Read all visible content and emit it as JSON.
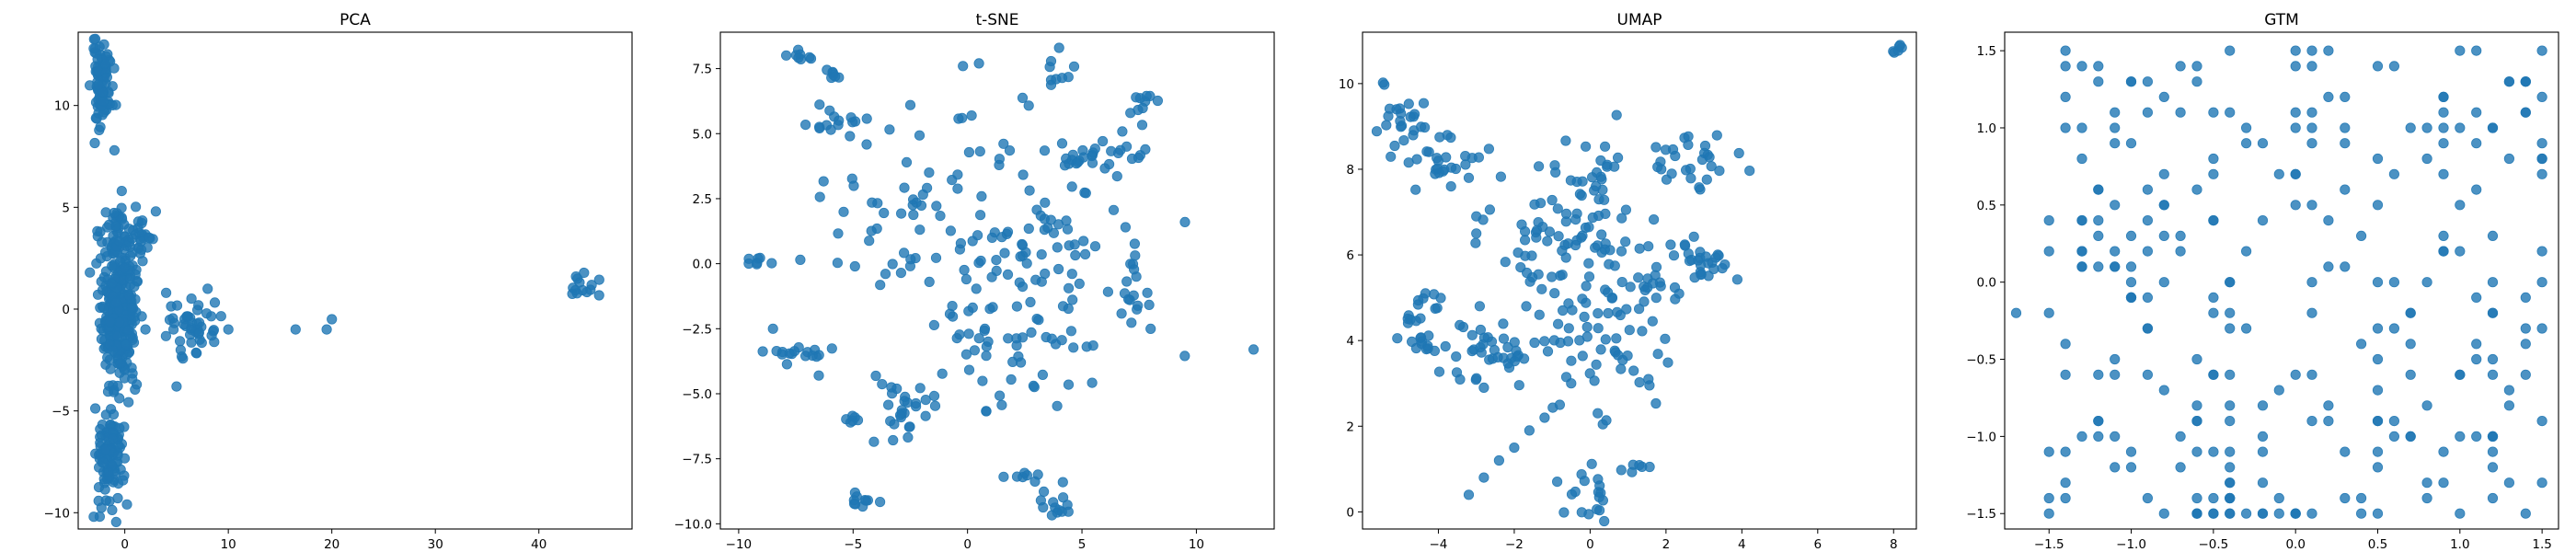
{
  "figure": {
    "background": "#ffffff",
    "marker_color": "#1f77b4",
    "marker_alpha": 0.8
  },
  "chart_data": [
    {
      "type": "scatter",
      "title": "PCA",
      "xlabel": "",
      "ylabel": "",
      "xlim": [
        -4.5,
        49
      ],
      "ylim": [
        -10.8,
        13.6
      ],
      "xticks": [
        0,
        10,
        20,
        30,
        40
      ],
      "yticks": [
        -10,
        -5,
        0,
        5,
        10
      ],
      "grid": false,
      "seed": 11,
      "clusters": [
        {
          "cx": -2.2,
          "cy": 11.0,
          "sx": 0.5,
          "sy": 1.0,
          "n": 80
        },
        {
          "cx": -0.6,
          "cy": -0.5,
          "sx": 0.8,
          "sy": 1.6,
          "n": 260
        },
        {
          "cx": -0.8,
          "cy": 3.2,
          "sx": 0.9,
          "sy": 1.0,
          "n": 70
        },
        {
          "cx": -1.4,
          "cy": -6.8,
          "sx": 0.7,
          "sy": 1.4,
          "n": 110
        },
        {
          "cx": 1.8,
          "cy": 3.5,
          "sx": 0.8,
          "sy": 0.6,
          "n": 18
        },
        {
          "cx": 6.5,
          "cy": -0.8,
          "sx": 1.4,
          "sy": 0.7,
          "n": 45
        },
        {
          "cx": 44.0,
          "cy": 1.2,
          "sx": 1.1,
          "sy": 0.5,
          "n": 14
        }
      ],
      "points": [
        {
          "x": -1.0,
          "y": 7.8
        },
        {
          "x": -3.0,
          "y": -10.2
        },
        {
          "x": 16.5,
          "y": -1.0
        },
        {
          "x": 19.5,
          "y": -1.0
        },
        {
          "x": 20.0,
          "y": -0.5
        },
        {
          "x": 10.0,
          "y": -1.0
        },
        {
          "x": 8.0,
          "y": 1.0
        },
        {
          "x": 3.0,
          "y": 4.8
        },
        {
          "x": -0.3,
          "y": 5.8
        },
        {
          "x": 5.0,
          "y": -3.8
        },
        {
          "x": 2.0,
          "y": -1.0
        },
        {
          "x": 4.0,
          "y": 0.8
        },
        {
          "x": -3.0,
          "y": 12.8
        },
        {
          "x": -2.0,
          "y": 13.0
        },
        {
          "x": 0.5,
          "y": 1.5
        }
      ]
    },
    {
      "type": "scatter",
      "title": "t-SNE",
      "xlabel": "",
      "ylabel": "",
      "xlim": [
        -10.8,
        13.4
      ],
      "ylim": [
        -10.2,
        8.9
      ],
      "xticks": [
        -10,
        -5,
        0,
        5,
        10
      ],
      "yticks": [
        -10.0,
        -7.5,
        -5.0,
        -2.5,
        0.0,
        2.5,
        5.0,
        7.5
      ],
      "ytick_labels": [
        "−10.0",
        "−7.5",
        "−5.0",
        "−2.5",
        "0.0",
        "2.5",
        "5.0",
        "7.5"
      ],
      "grid": false,
      "seed": 23,
      "clusters": [
        {
          "cx": -7.5,
          "cy": 8.0,
          "sx": 0.3,
          "sy": 0.2,
          "n": 8
        },
        {
          "cx": -6.0,
          "cy": 7.3,
          "sx": 0.3,
          "sy": 0.1,
          "n": 7
        },
        {
          "cx": -5.8,
          "cy": 5.3,
          "sx": 0.8,
          "sy": 0.4,
          "n": 16
        },
        {
          "cx": -9.2,
          "cy": 0.1,
          "sx": 0.3,
          "sy": 0.1,
          "n": 7
        },
        {
          "cx": -7.5,
          "cy": -3.5,
          "sx": 1.0,
          "sy": 0.2,
          "n": 16
        },
        {
          "cx": -2.8,
          "cy": -5.5,
          "sx": 0.5,
          "sy": 0.6,
          "n": 24
        },
        {
          "cx": -5.2,
          "cy": -6.0,
          "sx": 0.3,
          "sy": 0.1,
          "n": 6
        },
        {
          "cx": -4.3,
          "cy": -9.0,
          "sx": 0.5,
          "sy": 0.2,
          "n": 10
        },
        {
          "cx": 4.0,
          "cy": -9.3,
          "sx": 0.5,
          "sy": 0.3,
          "n": 12
        },
        {
          "cx": 2.5,
          "cy": -8.3,
          "sx": 0.8,
          "sy": 0.1,
          "n": 8
        },
        {
          "cx": 5.5,
          "cy": 4.1,
          "sx": 1.0,
          "sy": 0.3,
          "n": 28
        },
        {
          "cx": 7.8,
          "cy": 6.1,
          "sx": 0.3,
          "sy": 0.3,
          "n": 10
        },
        {
          "cx": 7.0,
          "cy": -1.2,
          "sx": 0.5,
          "sy": 0.7,
          "n": 16
        },
        {
          "cx": 2.0,
          "cy": 0.5,
          "sx": 2.2,
          "sy": 2.5,
          "n": 110
        },
        {
          "cx": -3.0,
          "cy": 1.0,
          "sx": 1.5,
          "sy": 2.0,
          "n": 40
        },
        {
          "cx": 1.5,
          "cy": -4.0,
          "sx": 1.4,
          "sy": 1.2,
          "n": 35
        },
        {
          "cx": 3.8,
          "cy": 7.3,
          "sx": 0.3,
          "sy": 0.4,
          "n": 8
        }
      ],
      "points": [
        {
          "x": 12.5,
          "y": -3.3
        },
        {
          "x": 9.5,
          "y": 1.6
        },
        {
          "x": -2.5,
          "y": 6.1
        },
        {
          "x": -0.2,
          "y": 7.6
        },
        {
          "x": 0.5,
          "y": 7.7
        },
        {
          "x": 4.0,
          "y": 8.3
        },
        {
          "x": -8.5,
          "y": -2.5
        },
        {
          "x": -6.5,
          "y": -4.3
        }
      ]
    },
    {
      "type": "scatter",
      "title": "UMAP",
      "xlabel": "",
      "ylabel": "",
      "xlim": [
        -6.0,
        8.6
      ],
      "ylim": [
        -0.4,
        11.2
      ],
      "xticks": [
        -4,
        -2,
        0,
        2,
        4,
        6,
        8
      ],
      "yticks": [
        0,
        2,
        4,
        6,
        8,
        10
      ],
      "grid": false,
      "seed": 37,
      "clusters": [
        {
          "cx": -5.0,
          "cy": 9.3,
          "sx": 0.3,
          "sy": 0.4,
          "n": 20
        },
        {
          "cx": -3.8,
          "cy": 8.3,
          "sx": 0.5,
          "sy": 0.4,
          "n": 30
        },
        {
          "cx": -4.5,
          "cy": 4.7,
          "sx": 0.3,
          "sy": 0.4,
          "n": 16
        },
        {
          "cx": -2.5,
          "cy": 3.8,
          "sx": 0.8,
          "sy": 0.5,
          "n": 45
        },
        {
          "cx": -0.6,
          "cy": 6.2,
          "sx": 0.9,
          "sy": 0.8,
          "n": 70
        },
        {
          "cx": 0.5,
          "cy": 4.0,
          "sx": 0.9,
          "sy": 0.8,
          "n": 55
        },
        {
          "cx": 0.3,
          "cy": 7.8,
          "sx": 0.5,
          "sy": 0.6,
          "n": 24
        },
        {
          "cx": 2.5,
          "cy": 8.2,
          "sx": 0.6,
          "sy": 0.4,
          "n": 28
        },
        {
          "cx": 3.2,
          "cy": 5.8,
          "sx": 0.4,
          "sy": 0.2,
          "n": 22
        },
        {
          "cx": 1.8,
          "cy": 5.5,
          "sx": 0.5,
          "sy": 0.7,
          "n": 22
        },
        {
          "cx": 0.0,
          "cy": 0.3,
          "sx": 0.3,
          "sy": 0.4,
          "n": 18
        },
        {
          "cx": 1.4,
          "cy": 1.0,
          "sx": 0.3,
          "sy": 0.1,
          "n": 6
        },
        {
          "cx": -4.4,
          "cy": 4.0,
          "sx": 0.2,
          "sy": 0.1,
          "n": 8
        },
        {
          "cx": 8.1,
          "cy": 10.8,
          "sx": 0.1,
          "sy": 0.1,
          "n": 6
        }
      ],
      "points": [
        {
          "x": -3.2,
          "y": 0.4
        },
        {
          "x": -2.8,
          "y": 0.8
        },
        {
          "x": -2.4,
          "y": 1.2
        },
        {
          "x": -2.0,
          "y": 1.5
        },
        {
          "x": -1.6,
          "y": 1.9
        },
        {
          "x": -1.2,
          "y": 2.2
        },
        {
          "x": -3.0,
          "y": 6.9
        },
        {
          "x": -3.0,
          "y": 6.5
        },
        {
          "x": -3.2,
          "y": 7.8
        },
        {
          "x": -2.8,
          "y": 2.9
        },
        {
          "x": -0.8,
          "y": 2.5
        },
        {
          "x": -0.5,
          "y": 3.0
        }
      ]
    },
    {
      "type": "scatter",
      "title": "GTM",
      "xlabel": "",
      "ylabel": "",
      "xlim": [
        -1.77,
        1.6
      ],
      "ylim": [
        -1.6,
        1.62
      ],
      "xticks": [
        -1.5,
        -1.0,
        -0.5,
        0.0,
        0.5,
        1.0,
        1.5
      ],
      "xtick_labels": [
        "−1.5",
        "−1.0",
        "−0.5",
        "0.0",
        "0.5",
        "1.0",
        "1.5"
      ],
      "yticks": [
        -1.5,
        -1.0,
        -0.5,
        0.0,
        0.5,
        1.0,
        1.5
      ],
      "ytick_labels": [
        "−1.5",
        "−1.0",
        "−0.5",
        "0.0",
        "0.5",
        "1.0",
        "1.5"
      ],
      "grid": false,
      "seed": 53,
      "grid_lattice": {
        "min": -1.5,
        "max": 1.5,
        "step": 0.1
      },
      "n_lattice_points": 260,
      "points": [
        {
          "x": -1.5,
          "y": -1.5
        },
        {
          "x": -0.6,
          "y": -1.5
        },
        {
          "x": -0.5,
          "y": -1.5
        },
        {
          "x": -0.4,
          "y": -1.5
        },
        {
          "x": -0.3,
          "y": -1.5
        },
        {
          "x": -0.2,
          "y": -1.5
        },
        {
          "x": 0.0,
          "y": 1.5
        },
        {
          "x": 0.1,
          "y": 1.5
        },
        {
          "x": 0.2,
          "y": 1.5
        },
        {
          "x": -0.4,
          "y": 1.5
        },
        {
          "x": -1.4,
          "y": 1.5
        },
        {
          "x": 1.0,
          "y": 1.0
        },
        {
          "x": 1.0,
          "y": -1.5
        },
        {
          "x": 1.4,
          "y": -1.5
        },
        {
          "x": 1.5,
          "y": 0.7
        },
        {
          "x": -1.7,
          "y": -0.2
        },
        {
          "x": -0.4,
          "y": -1.2
        },
        {
          "x": -0.4,
          "y": -1.1
        },
        {
          "x": -0.4,
          "y": -1.3
        },
        {
          "x": -0.4,
          "y": -1.4
        },
        {
          "x": -0.6,
          "y": -0.9
        }
      ]
    }
  ]
}
